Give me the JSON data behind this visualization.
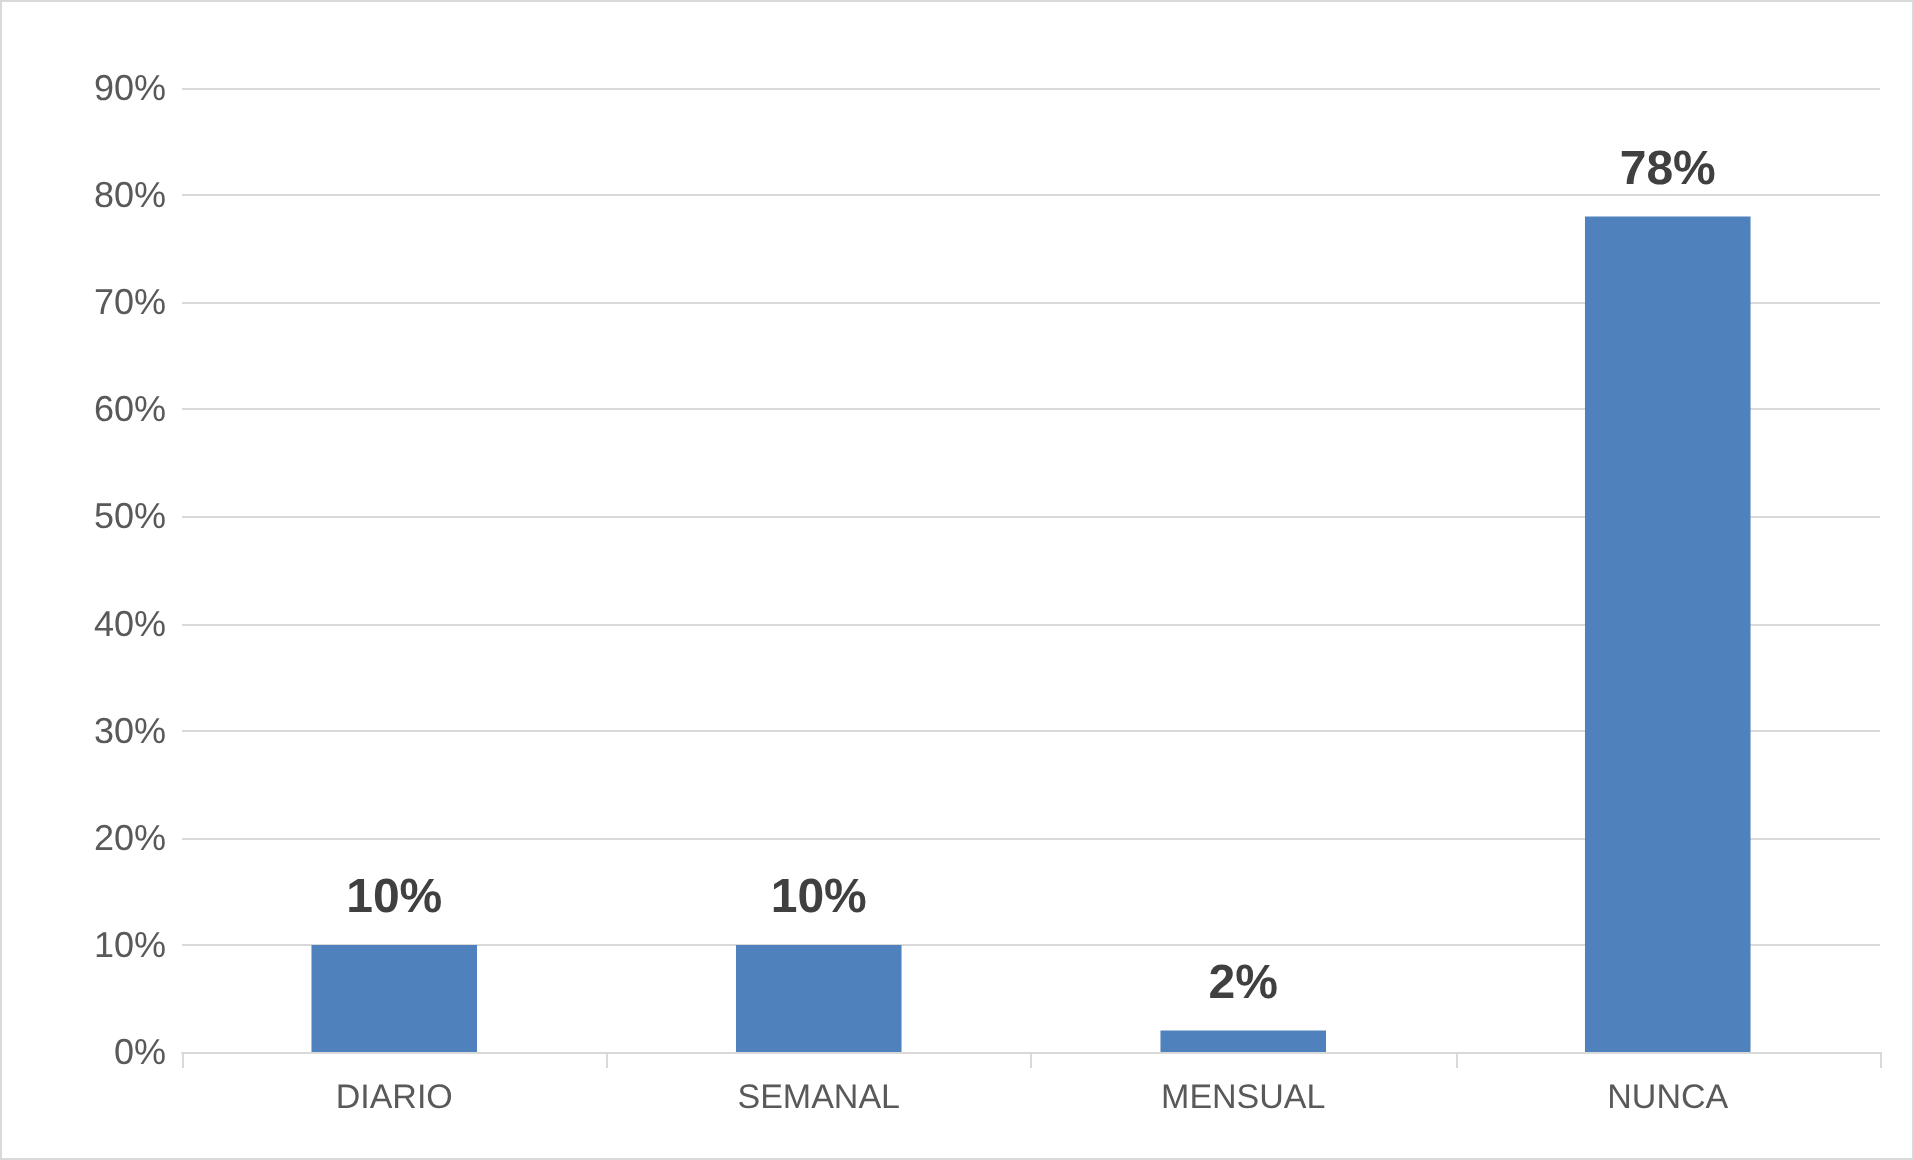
{
  "chart_data": {
    "type": "bar",
    "categories": [
      "DIARIO",
      "SEMANAL",
      "MENSUAL",
      "NUNCA"
    ],
    "values": [
      10,
      10,
      2,
      78
    ],
    "value_labels": [
      "10%",
      "10%",
      "2%",
      "78%"
    ],
    "color": "#4f81bd",
    "ylim": [
      0,
      90
    ],
    "yticks": [
      {
        "value": 0,
        "label": "0%"
      },
      {
        "value": 10,
        "label": "10%"
      },
      {
        "value": 20,
        "label": "20%"
      },
      {
        "value": 30,
        "label": "30%"
      },
      {
        "value": 40,
        "label": "40%"
      },
      {
        "value": 50,
        "label": "50%"
      },
      {
        "value": 60,
        "label": "60%"
      },
      {
        "value": 70,
        "label": "70%"
      },
      {
        "value": 80,
        "label": "80%"
      },
      {
        "value": 90,
        "label": "90%"
      }
    ],
    "grid": "y"
  }
}
